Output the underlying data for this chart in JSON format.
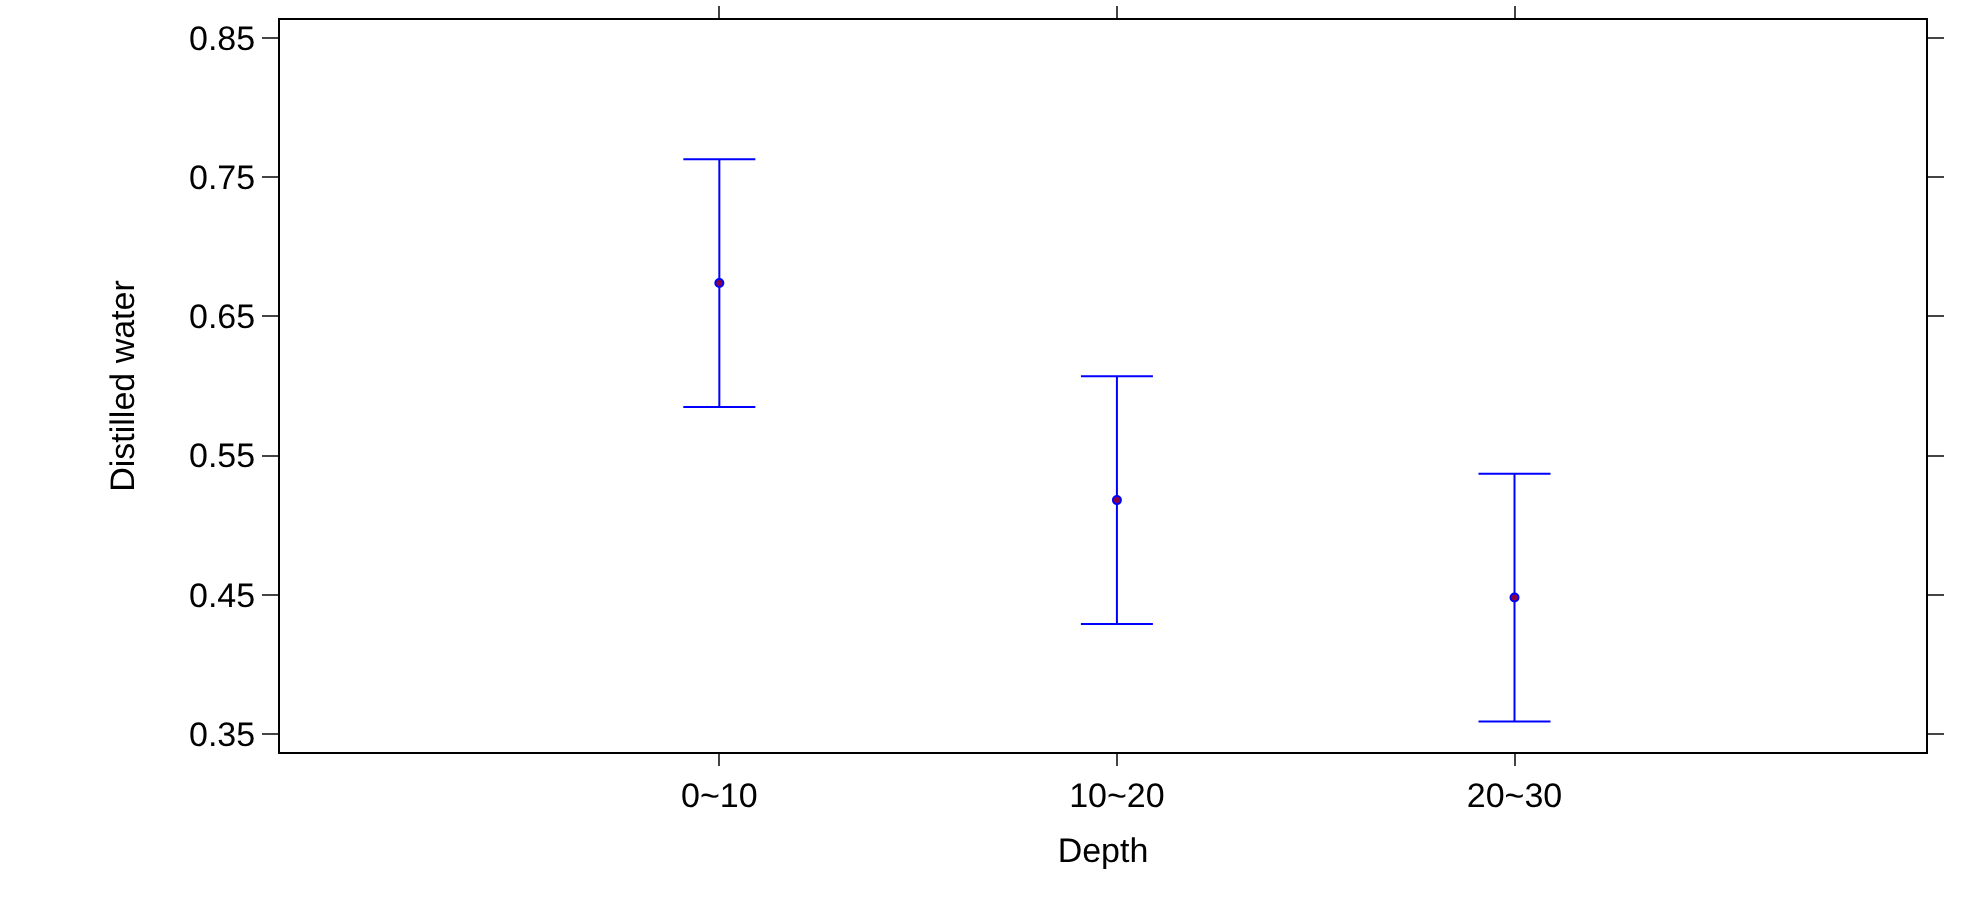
{
  "chart_data": {
    "type": "scatter",
    "xlabel": "Depth",
    "ylabel": "Distilled water",
    "categories": [
      "0~10",
      "10~20",
      "20~30"
    ],
    "series": [
      {
        "color": "#0000ff",
        "values": [
          0.674,
          0.518,
          0.448
        ],
        "errors": [
          0.089,
          0.089,
          0.089
        ]
      }
    ],
    "marker": "circle",
    "ylim": [
      0.337,
      0.863
    ],
    "yticks": [
      0.35,
      0.45,
      0.55,
      0.65,
      0.75,
      0.85
    ],
    "grid": false
  }
}
